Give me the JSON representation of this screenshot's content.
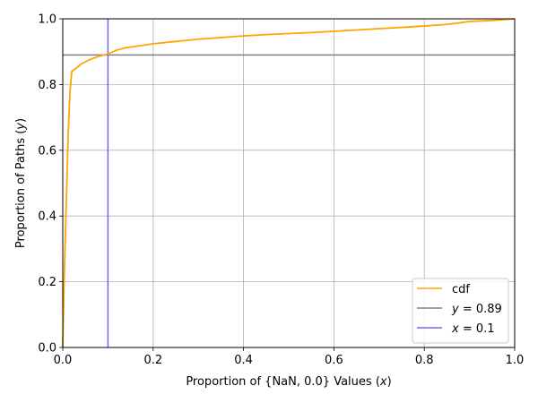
{
  "chart_data": {
    "type": "line",
    "xlabel_parts": [
      "Proportion of {NaN, 0.0} Values (",
      "x",
      ")"
    ],
    "ylabel_parts": [
      "Proportion of Paths (",
      "y",
      ")"
    ],
    "xlim": [
      0.0,
      1.0
    ],
    "ylim": [
      0.0,
      1.0
    ],
    "xticks": [
      "0.0",
      "0.2",
      "0.4",
      "0.6",
      "0.8",
      "1.0"
    ],
    "yticks": [
      "0.0",
      "0.2",
      "0.4",
      "0.6",
      "0.8",
      "1.0"
    ],
    "grid": true,
    "legend_position": "lower-right",
    "series": [
      {
        "name": "cdf",
        "color": "#ffa500",
        "x": [
          0.0,
          0.003,
          0.008,
          0.012,
          0.016,
          0.02,
          0.03,
          0.04,
          0.06,
          0.08,
          0.1,
          0.12,
          0.14,
          0.16,
          0.18,
          0.2,
          0.25,
          0.3,
          0.35,
          0.4,
          0.45,
          0.5,
          0.55,
          0.6,
          0.65,
          0.7,
          0.75,
          0.8,
          0.85,
          0.88,
          0.9,
          0.95,
          1.0
        ],
        "y": [
          0.0,
          0.2,
          0.45,
          0.65,
          0.78,
          0.84,
          0.85,
          0.862,
          0.876,
          0.886,
          0.893,
          0.905,
          0.912,
          0.916,
          0.92,
          0.924,
          0.931,
          0.938,
          0.943,
          0.948,
          0.952,
          0.955,
          0.958,
          0.962,
          0.966,
          0.97,
          0.974,
          0.978,
          0.983,
          0.988,
          0.992,
          0.995,
          1.0
        ]
      }
    ],
    "reference_lines": [
      {
        "kind": "horizontal",
        "value": 0.89,
        "color": "#808080",
        "label_var": "y",
        "label_rest": " = 0.89"
      },
      {
        "kind": "vertical",
        "value": 0.1,
        "color": "#6b6bf0",
        "label_var": "x",
        "label_rest": " = 0.1"
      }
    ]
  }
}
